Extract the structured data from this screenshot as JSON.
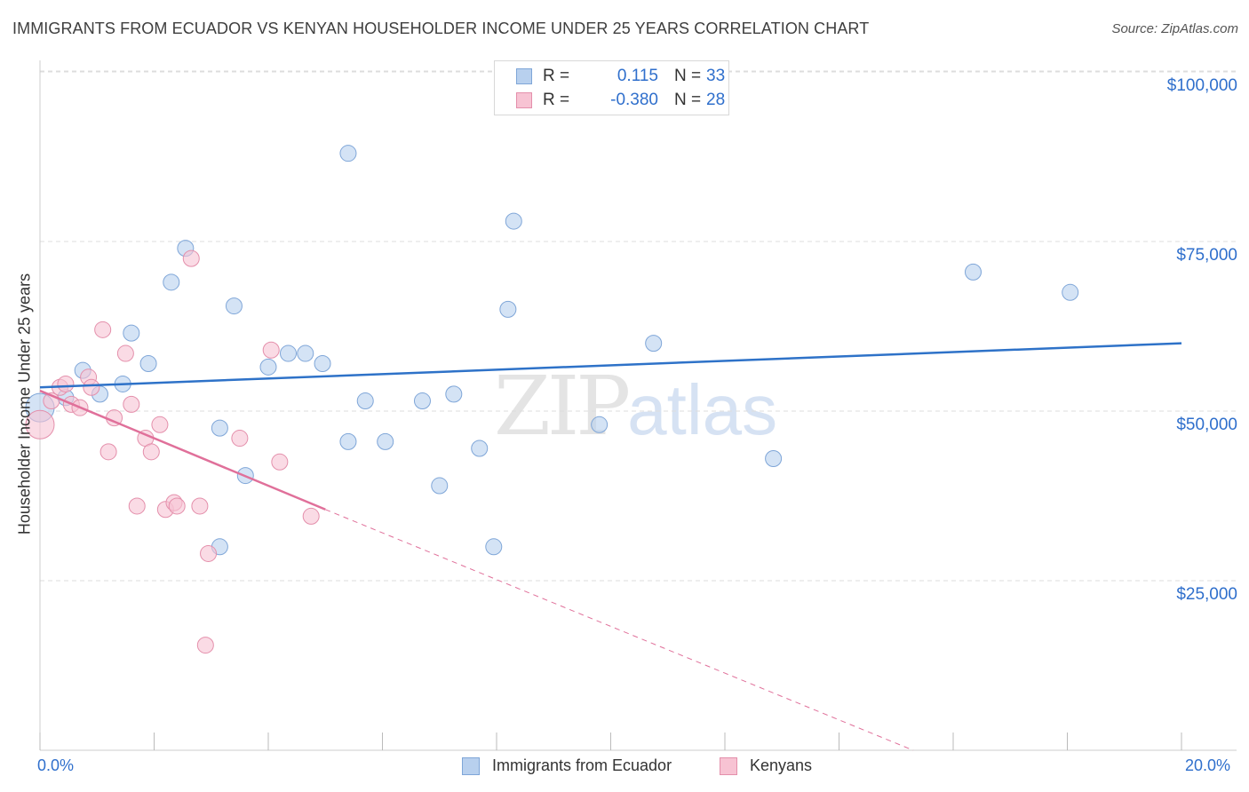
{
  "title": "IMMIGRANTS FROM ECUADOR VS KENYAN HOUSEHOLDER INCOME UNDER 25 YEARS CORRELATION CHART",
  "source": "Source: ZipAtlas.com",
  "watermark": {
    "zip": "ZIP",
    "atlas": "atlas"
  },
  "legend_top": {
    "rows": [
      {
        "r_label": "R =",
        "r_value": "0.115",
        "n_label": "N =",
        "n_value": "33"
      },
      {
        "r_label": "R =",
        "r_value": "-0.380",
        "n_label": "N =",
        "n_value": "28"
      }
    ]
  },
  "legend_bottom": {
    "items": [
      {
        "label": "Immigrants from Ecuador"
      },
      {
        "label": "Kenyans"
      }
    ]
  },
  "colors": {
    "blue_fill": "#b8d0ee",
    "blue_stroke": "#7fa6d8",
    "blue_line": "#2e72c8",
    "pink_fill": "#f7c3d3",
    "pink_stroke": "#e48fab",
    "pink_line": "#e0709a",
    "grid": "#dddddd",
    "axis_text": "#2f6fcc"
  },
  "chart_data": {
    "type": "scatter",
    "title": "IMMIGRANTS FROM ECUADOR VS KENYAN HOUSEHOLDER INCOME UNDER 25 YEARS CORRELATION CHART",
    "xlabel": "",
    "ylabel": "Householder Income Under 25 years",
    "xlim": [
      0,
      20
    ],
    "ylim": [
      0,
      105000
    ],
    "x_tick_labels": [
      "0.0%",
      "20.0%"
    ],
    "y_ticks": [
      25000,
      50000,
      75000,
      100000
    ],
    "y_tick_labels": [
      "$25,000",
      "$50,000",
      "$75,000",
      "$100,000"
    ],
    "series": [
      {
        "name": "Immigrants from Ecuador",
        "color": "blue",
        "points": [
          [
            0.0,
            50500
          ],
          [
            0.45,
            52000
          ],
          [
            0.75,
            56000
          ],
          [
            1.05,
            52500
          ],
          [
            1.45,
            54000
          ],
          [
            1.6,
            61500
          ],
          [
            1.9,
            57000
          ],
          [
            2.3,
            69000
          ],
          [
            2.55,
            74000
          ],
          [
            3.15,
            30000
          ],
          [
            3.15,
            47500
          ],
          [
            3.4,
            65500
          ],
          [
            3.6,
            40500
          ],
          [
            4.0,
            56500
          ],
          [
            4.35,
            58500
          ],
          [
            4.65,
            58500
          ],
          [
            4.95,
            57000
          ],
          [
            5.4,
            88000
          ],
          [
            5.4,
            45500
          ],
          [
            5.7,
            51500
          ],
          [
            6.05,
            45500
          ],
          [
            6.7,
            51500
          ],
          [
            7.0,
            39000
          ],
          [
            7.25,
            52500
          ],
          [
            7.7,
            44500
          ],
          [
            7.95,
            30000
          ],
          [
            8.2,
            65000
          ],
          [
            8.3,
            78000
          ],
          [
            9.8,
            48000
          ],
          [
            10.75,
            60000
          ],
          [
            12.85,
            43000
          ],
          [
            16.35,
            70500
          ],
          [
            18.05,
            67500
          ]
        ],
        "trend": {
          "x0": 0,
          "y0": 53500,
          "x1": 20,
          "y1": 60000
        }
      },
      {
        "name": "Kenyans",
        "color": "pink",
        "points": [
          [
            0.0,
            48000
          ],
          [
            0.2,
            51500
          ],
          [
            0.35,
            53500
          ],
          [
            0.45,
            54000
          ],
          [
            0.55,
            51000
          ],
          [
            0.7,
            50500
          ],
          [
            0.85,
            55000
          ],
          [
            0.9,
            53500
          ],
          [
            1.1,
            62000
          ],
          [
            1.2,
            44000
          ],
          [
            1.3,
            49000
          ],
          [
            1.5,
            58500
          ],
          [
            1.6,
            51000
          ],
          [
            1.7,
            36000
          ],
          [
            1.85,
            46000
          ],
          [
            1.95,
            44000
          ],
          [
            2.1,
            48000
          ],
          [
            2.2,
            35500
          ],
          [
            2.35,
            36500
          ],
          [
            2.4,
            36000
          ],
          [
            2.65,
            72500
          ],
          [
            2.8,
            36000
          ],
          [
            2.95,
            29000
          ],
          [
            2.9,
            15500
          ],
          [
            3.5,
            46000
          ],
          [
            4.05,
            59000
          ],
          [
            4.2,
            42500
          ],
          [
            4.75,
            34500
          ]
        ],
        "trend": {
          "x0": 0,
          "y0": 53000,
          "x1": 5.0,
          "y1": 35500
        },
        "trend_extension": {
          "x0": 5.0,
          "y0": 35500,
          "x1": 15.3,
          "y1": 0
        }
      }
    ]
  }
}
